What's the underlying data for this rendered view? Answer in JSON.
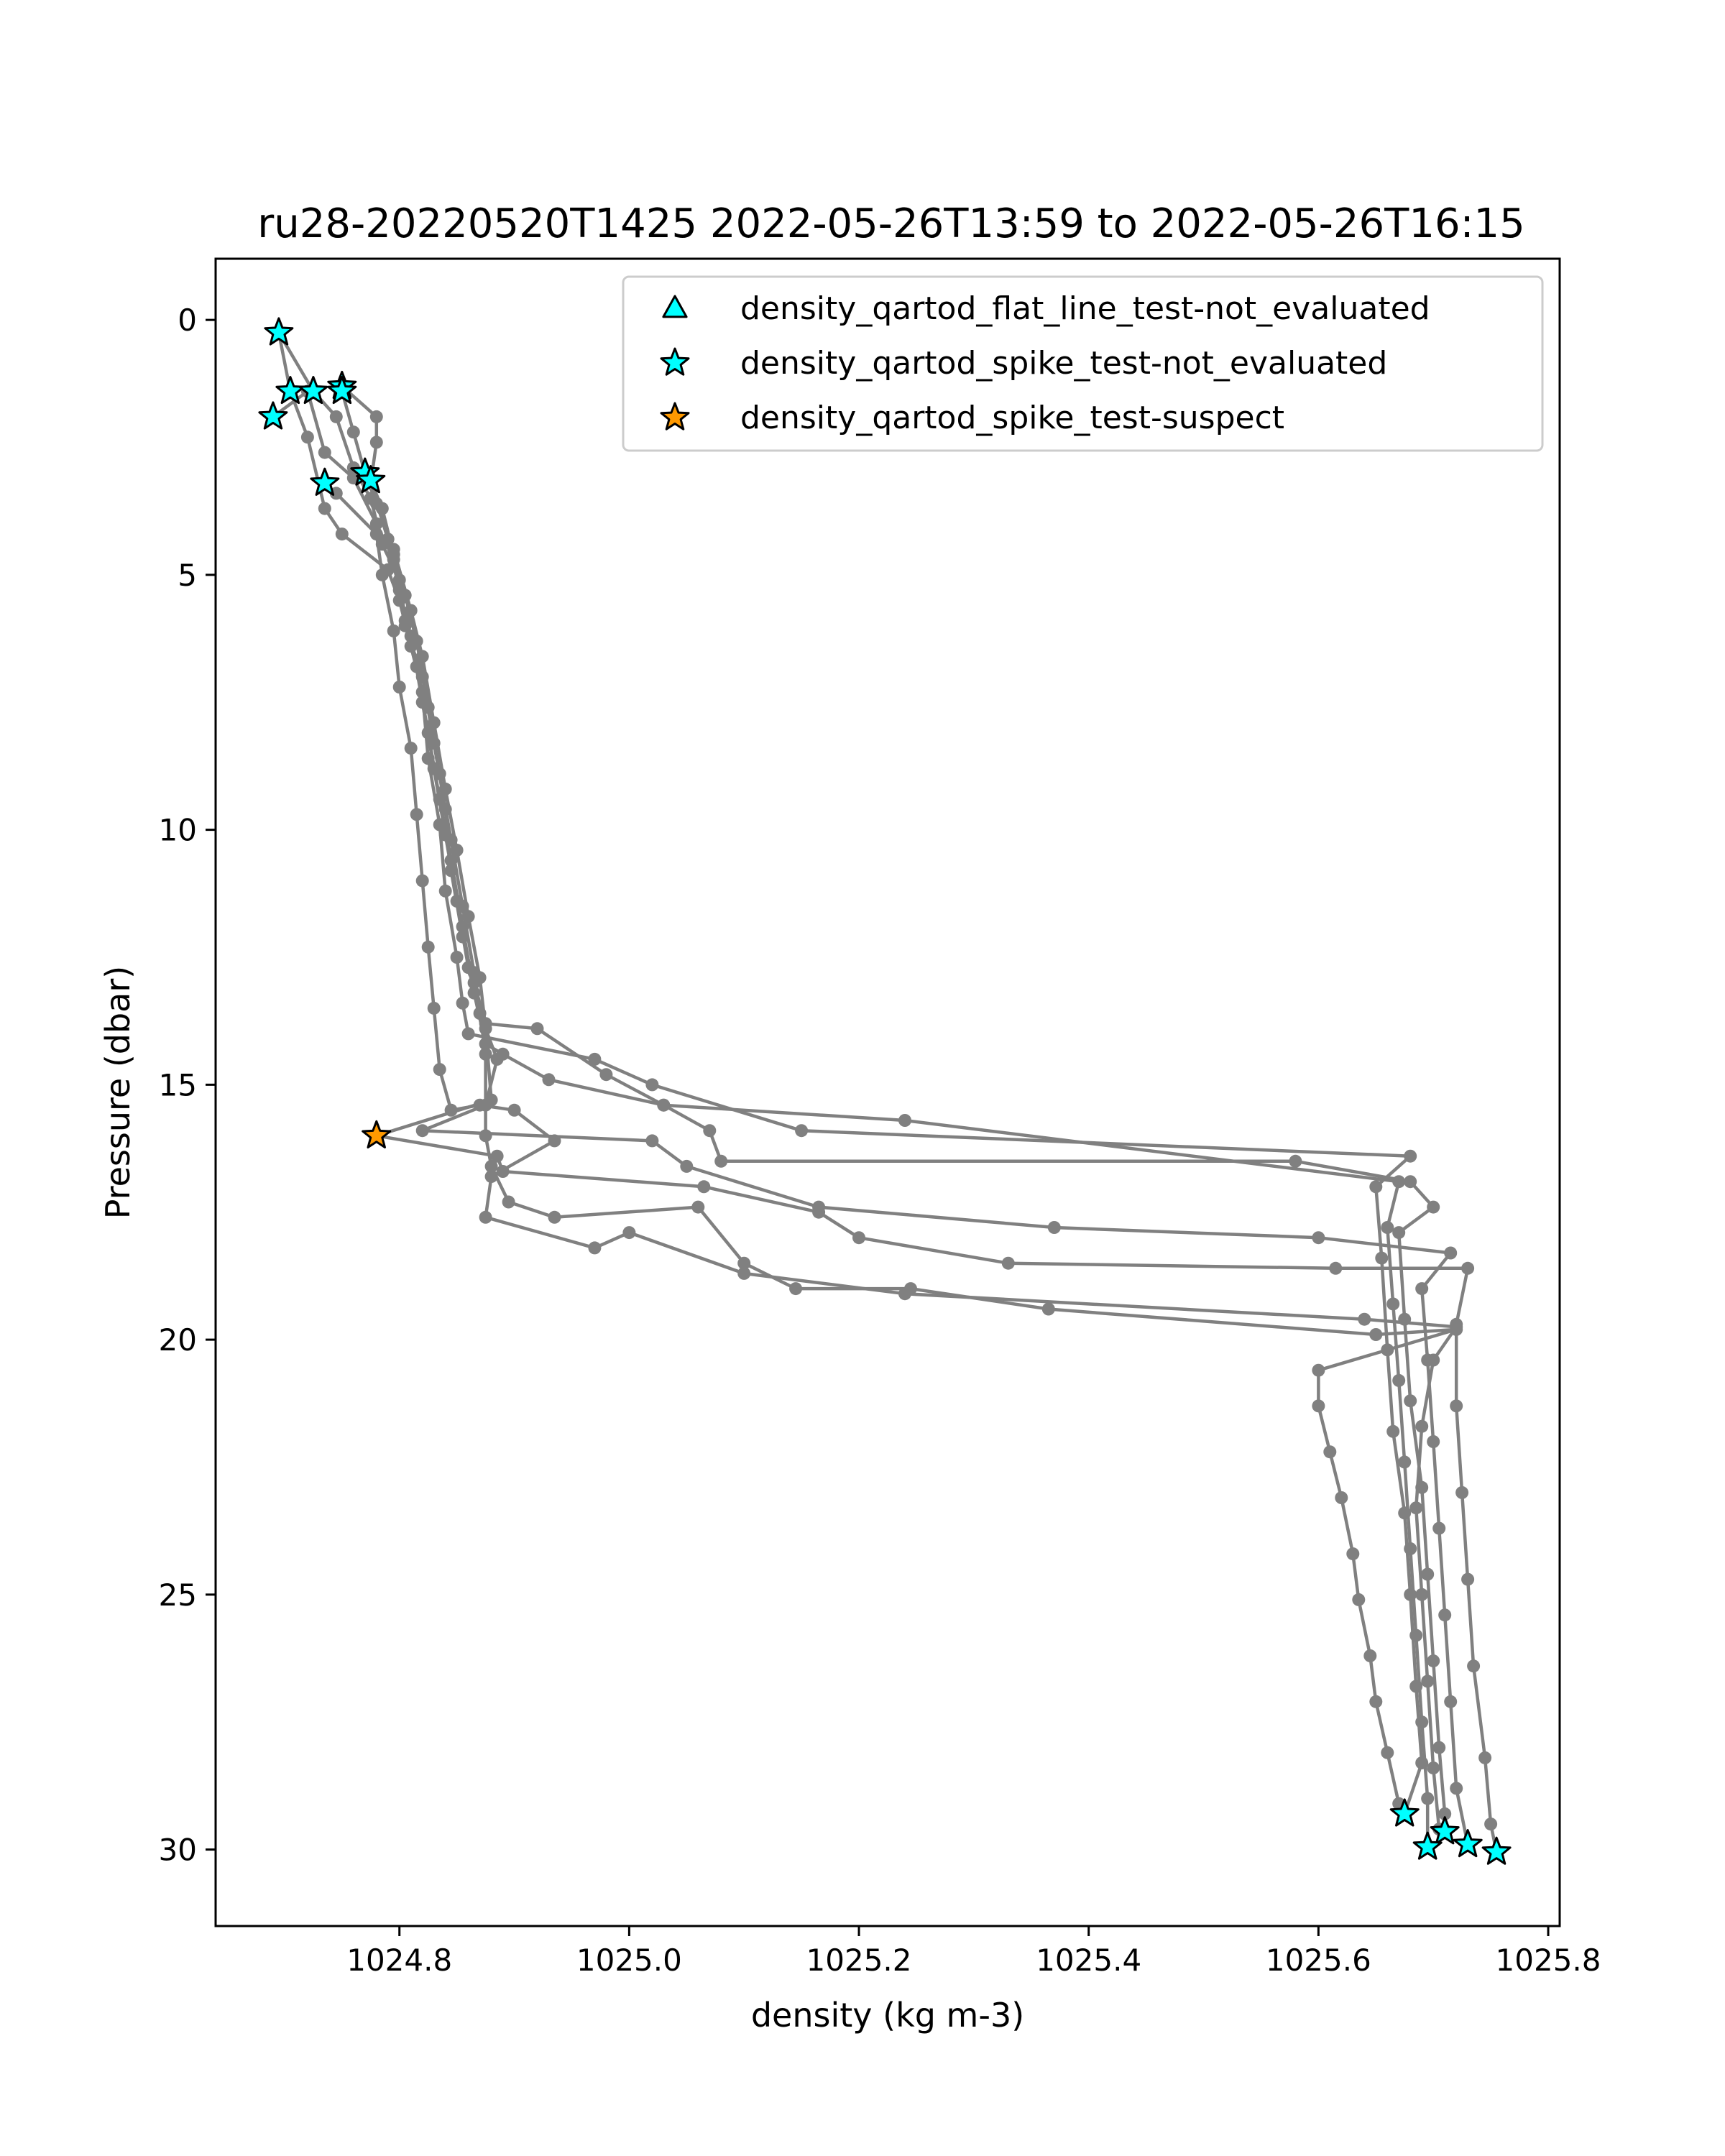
{
  "chart_data": {
    "type": "scatter",
    "title": "ru28-20220520T1425 2022-05-26T13:59 to 2022-05-26T16:15",
    "xlabel": "density (kg m-3)",
    "ylabel": "Pressure (dbar)",
    "xlim": [
      1024.64,
      1025.81
    ],
    "ylim": [
      31.5,
      -1.2
    ],
    "y_inverted": true,
    "grid": false,
    "legend_position": "top-right",
    "x_ticks": [
      1024.8,
      1025.0,
      1025.2,
      1025.4,
      1025.6,
      1025.8
    ],
    "x_tick_labels": [
      "1024.8",
      "1025.0",
      "1025.2",
      "1025.4",
      "1025.6",
      "1025.8"
    ],
    "y_ticks": [
      0,
      5,
      10,
      15,
      20,
      25,
      30
    ],
    "y_tick_labels": [
      "0",
      "5",
      "10",
      "15",
      "20",
      "25",
      "30"
    ],
    "profile_color": "#808080",
    "profiles": [
      [
        [
          1024.695,
          0.25
        ],
        [
          1024.705,
          1.4
        ],
        [
          1024.72,
          2.3
        ],
        [
          1024.735,
          3.7
        ],
        [
          1024.75,
          4.2
        ],
        [
          1024.79,
          4.9
        ],
        [
          1024.8,
          5.5
        ],
        [
          1024.81,
          6.4
        ],
        [
          1024.82,
          7.3
        ],
        [
          1024.825,
          8.6
        ],
        [
          1024.835,
          9.9
        ],
        [
          1024.84,
          11.2
        ],
        [
          1024.85,
          12.5
        ],
        [
          1024.855,
          13.4
        ],
        [
          1024.86,
          14.0
        ],
        [
          1024.97,
          14.5
        ],
        [
          1025.02,
          15.0
        ],
        [
          1025.15,
          15.9
        ],
        [
          1025.68,
          16.4
        ],
        [
          1025.65,
          17.0
        ],
        [
          1025.655,
          18.4
        ],
        [
          1025.66,
          20.2
        ],
        [
          1025.665,
          21.8
        ],
        [
          1025.675,
          23.4
        ],
        [
          1025.68,
          25.0
        ],
        [
          1025.685,
          26.8
        ],
        [
          1025.69,
          28.3
        ],
        [
          1025.675,
          29.3
        ]
      ],
      [
        [
          1024.695,
          0.25
        ],
        [
          1024.725,
          1.4
        ],
        [
          1024.745,
          1.9
        ],
        [
          1024.76,
          2.9
        ],
        [
          1024.775,
          3.5
        ],
        [
          1024.785,
          4.4
        ],
        [
          1024.8,
          5.1
        ],
        [
          1024.805,
          6.0
        ],
        [
          1024.82,
          7.0
        ],
        [
          1024.83,
          8.3
        ],
        [
          1024.84,
          9.6
        ],
        [
          1024.845,
          10.8
        ],
        [
          1024.855,
          12.1
        ],
        [
          1024.865,
          13.0
        ],
        [
          1024.875,
          13.8
        ],
        [
          1024.92,
          13.9
        ],
        [
          1024.98,
          14.8
        ],
        [
          1025.03,
          15.4
        ],
        [
          1025.24,
          15.7
        ],
        [
          1025.67,
          16.9
        ],
        [
          1025.66,
          17.8
        ],
        [
          1025.665,
          19.3
        ],
        [
          1025.67,
          20.8
        ],
        [
          1025.675,
          22.4
        ],
        [
          1025.68,
          24.1
        ],
        [
          1025.685,
          25.8
        ],
        [
          1025.69,
          27.5
        ],
        [
          1025.695,
          29.0
        ],
        [
          1025.695,
          29.95
        ]
      ],
      [
        [
          1024.69,
          1.9
        ],
        [
          1024.72,
          1.4
        ],
        [
          1024.735,
          2.6
        ],
        [
          1024.76,
          3.1
        ],
        [
          1024.78,
          4.0
        ],
        [
          1024.795,
          4.7
        ],
        [
          1024.805,
          5.9
        ],
        [
          1024.815,
          6.8
        ],
        [
          1024.825,
          8.1
        ],
        [
          1024.835,
          9.4
        ],
        [
          1024.845,
          10.6
        ],
        [
          1024.855,
          11.9
        ],
        [
          1024.865,
          13.2
        ],
        [
          1024.875,
          14.2
        ],
        [
          1024.89,
          14.4
        ],
        [
          1024.93,
          14.9
        ],
        [
          1025.03,
          15.4
        ],
        [
          1025.07,
          15.9
        ],
        [
          1025.08,
          16.5
        ],
        [
          1025.58,
          16.5
        ],
        [
          1025.68,
          16.9
        ],
        [
          1025.7,
          17.4
        ],
        [
          1025.67,
          17.9
        ],
        [
          1025.675,
          19.6
        ],
        [
          1025.68,
          21.2
        ],
        [
          1025.69,
          22.9
        ],
        [
          1025.695,
          24.6
        ],
        [
          1025.7,
          26.3
        ],
        [
          1025.705,
          28.0
        ],
        [
          1025.71,
          29.3
        ],
        [
          1025.71,
          29.65
        ]
      ],
      [
        [
          1024.75,
          1.3
        ],
        [
          1024.78,
          1.9
        ],
        [
          1024.78,
          2.4
        ],
        [
          1024.775,
          3.2
        ],
        [
          1024.79,
          4.3
        ],
        [
          1024.8,
          5.3
        ],
        [
          1024.81,
          6.2
        ],
        [
          1024.82,
          7.5
        ],
        [
          1024.83,
          8.8
        ],
        [
          1024.84,
          10.1
        ],
        [
          1024.85,
          11.4
        ],
        [
          1024.86,
          12.7
        ],
        [
          1024.87,
          13.6
        ],
        [
          1024.885,
          14.5
        ],
        [
          1024.875,
          15.4
        ],
        [
          1024.82,
          15.9
        ],
        [
          1025.02,
          16.1
        ],
        [
          1025.05,
          16.6
        ],
        [
          1025.165,
          17.4
        ],
        [
          1025.37,
          17.8
        ],
        [
          1025.6,
          18.0
        ],
        [
          1025.715,
          18.3
        ],
        [
          1025.69,
          19.0
        ],
        [
          1025.695,
          20.4
        ],
        [
          1025.7,
          22.0
        ],
        [
          1025.705,
          23.7
        ],
        [
          1025.71,
          25.4
        ],
        [
          1025.715,
          27.1
        ],
        [
          1025.72,
          28.8
        ],
        [
          1025.73,
          29.9
        ]
      ],
      [
        [
          1024.75,
          1.4
        ],
        [
          1024.76,
          2.2
        ],
        [
          1024.77,
          3.0
        ],
        [
          1024.78,
          3.6
        ],
        [
          1024.795,
          4.5
        ],
        [
          1024.81,
          5.7
        ],
        [
          1024.82,
          6.6
        ],
        [
          1024.83,
          7.9
        ],
        [
          1024.84,
          9.2
        ],
        [
          1024.85,
          10.4
        ],
        [
          1024.86,
          11.7
        ],
        [
          1024.87,
          12.9
        ],
        [
          1024.875,
          13.9
        ],
        [
          1024.88,
          15.3
        ],
        [
          1024.78,
          16.0
        ],
        [
          1024.885,
          16.4
        ],
        [
          1024.89,
          16.7
        ],
        [
          1025.065,
          17.0
        ],
        [
          1025.165,
          17.5
        ],
        [
          1025.2,
          18.0
        ],
        [
          1025.33,
          18.5
        ],
        [
          1025.615,
          18.6
        ],
        [
          1025.73,
          18.6
        ],
        [
          1025.72,
          19.7
        ],
        [
          1025.72,
          21.3
        ],
        [
          1025.725,
          23.0
        ],
        [
          1025.73,
          24.7
        ],
        [
          1025.735,
          26.4
        ],
        [
          1025.745,
          28.2
        ],
        [
          1025.75,
          29.5
        ],
        [
          1025.755,
          30.05
        ]
      ],
      [
        [
          1024.775,
          3.15
        ],
        [
          1024.785,
          3.7
        ],
        [
          1024.795,
          4.6
        ],
        [
          1024.805,
          5.4
        ],
        [
          1024.815,
          6.3
        ],
        [
          1024.825,
          7.6
        ],
        [
          1024.835,
          8.9
        ],
        [
          1024.845,
          10.2
        ],
        [
          1024.855,
          11.5
        ],
        [
          1024.865,
          12.8
        ],
        [
          1024.875,
          14.4
        ],
        [
          1024.875,
          16.0
        ],
        [
          1024.88,
          16.6
        ],
        [
          1024.895,
          17.3
        ],
        [
          1024.935,
          17.6
        ],
        [
          1025.06,
          17.4
        ],
        [
          1025.1,
          18.5
        ],
        [
          1025.145,
          19.0
        ],
        [
          1025.245,
          19.0
        ],
        [
          1025.365,
          19.4
        ],
        [
          1025.65,
          19.9
        ],
        [
          1025.72,
          19.8
        ],
        [
          1025.6,
          20.6
        ],
        [
          1025.6,
          21.3
        ],
        [
          1025.61,
          22.2
        ],
        [
          1025.62,
          23.1
        ],
        [
          1025.63,
          24.2
        ],
        [
          1025.635,
          25.1
        ],
        [
          1025.645,
          26.2
        ],
        [
          1025.65,
          27.1
        ],
        [
          1025.66,
          28.1
        ],
        [
          1025.67,
          29.1
        ]
      ],
      [
        [
          1024.735,
          3.2
        ],
        [
          1024.745,
          3.4
        ],
        [
          1024.78,
          4.2
        ],
        [
          1024.785,
          5.0
        ],
        [
          1024.795,
          6.1
        ],
        [
          1024.8,
          7.2
        ],
        [
          1024.81,
          8.4
        ],
        [
          1024.815,
          9.7
        ],
        [
          1024.82,
          11.0
        ],
        [
          1024.825,
          12.3
        ],
        [
          1024.83,
          13.5
        ],
        [
          1024.835,
          14.7
        ],
        [
          1024.845,
          15.5
        ],
        [
          1024.87,
          15.4
        ],
        [
          1024.9,
          15.5
        ],
        [
          1024.935,
          16.1
        ],
        [
          1024.88,
          16.8
        ],
        [
          1024.875,
          17.6
        ],
        [
          1024.97,
          18.2
        ],
        [
          1025.0,
          17.9
        ],
        [
          1025.1,
          18.7
        ],
        [
          1025.24,
          19.1
        ],
        [
          1025.64,
          19.6
        ],
        [
          1025.72,
          19.75
        ],
        [
          1025.7,
          20.4
        ],
        [
          1025.69,
          21.7
        ],
        [
          1025.685,
          23.3
        ],
        [
          1025.69,
          25.0
        ],
        [
          1025.695,
          26.7
        ],
        [
          1025.7,
          28.4
        ],
        [
          1025.705,
          29.6
        ]
      ]
    ],
    "flagged_points": [
      {
        "x": 1024.695,
        "y": 0.25,
        "flag": "density_qartod_spike_test-not_evaluated"
      },
      {
        "x": 1024.705,
        "y": 1.4,
        "flag": "density_qartod_spike_test-not_evaluated"
      },
      {
        "x": 1024.725,
        "y": 1.4,
        "flag": "density_qartod_spike_test-not_evaluated"
      },
      {
        "x": 1024.75,
        "y": 1.3,
        "flag": "density_qartod_spike_test-not_evaluated"
      },
      {
        "x": 1024.75,
        "y": 1.4,
        "flag": "density_qartod_spike_test-not_evaluated"
      },
      {
        "x": 1024.69,
        "y": 1.9,
        "flag": "density_qartod_spike_test-not_evaluated"
      },
      {
        "x": 1024.735,
        "y": 3.2,
        "flag": "density_qartod_spike_test-not_evaluated"
      },
      {
        "x": 1024.77,
        "y": 3.0,
        "flag": "density_qartod_spike_test-not_evaluated"
      },
      {
        "x": 1024.775,
        "y": 3.15,
        "flag": "density_qartod_spike_test-not_evaluated"
      },
      {
        "x": 1024.78,
        "y": 16.0,
        "flag": "density_qartod_spike_test-suspect"
      },
      {
        "x": 1025.675,
        "y": 29.3,
        "flag": "density_qartod_spike_test-not_evaluated"
      },
      {
        "x": 1025.71,
        "y": 29.65,
        "flag": "density_qartod_spike_test-not_evaluated"
      },
      {
        "x": 1025.695,
        "y": 29.95,
        "flag": "density_qartod_spike_test-not_evaluated"
      },
      {
        "x": 1025.73,
        "y": 29.9,
        "flag": "density_qartod_spike_test-not_evaluated"
      },
      {
        "x": 1025.755,
        "y": 30.05,
        "flag": "density_qartod_spike_test-not_evaluated"
      }
    ],
    "legend": [
      {
        "label": "density_qartod_flat_line_test-not_evaluated",
        "marker": "triangle",
        "color": "#00ffff"
      },
      {
        "label": "density_qartod_spike_test-not_evaluated",
        "marker": "star",
        "color": "#00ffff"
      },
      {
        "label": "density_qartod_spike_test-suspect",
        "marker": "star",
        "color": "#ff9900"
      }
    ]
  }
}
